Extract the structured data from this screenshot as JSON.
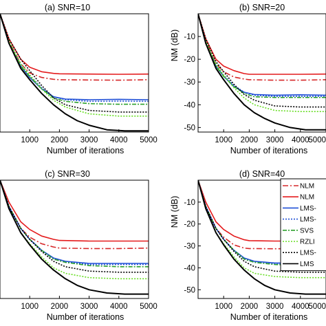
{
  "chart_data": [
    {
      "type": "line",
      "title": "(a) SNR=10",
      "xlabel": "Number of iterations",
      "ylabel": "",
      "xlim": [
        0,
        5000
      ],
      "ylim": [
        -52,
        0
      ],
      "xticks": [
        1000,
        2000,
        3000,
        4000,
        5000
      ],
      "yticks": [],
      "grid": false,
      "series": [
        {
          "name": "",
          "color": "#d62728",
          "dash": "8,3,2,3",
          "x": [
            0,
            300,
            700,
            1000,
            1400,
            1800,
            2000,
            3000,
            4000,
            5000
          ],
          "y": [
            0,
            -12,
            -22,
            -26,
            -28,
            -28.8,
            -29,
            -29.1,
            -29.2,
            -29
          ]
        },
        {
          "name": "",
          "color": "#e41a1c",
          "dash": "",
          "x": [
            0,
            300,
            700,
            1000,
            1400,
            1800,
            2000,
            3000,
            4000,
            5000
          ],
          "y": [
            0,
            -11,
            -20,
            -23.5,
            -25.5,
            -26.2,
            -26.4,
            -26.5,
            -26.6,
            -26.5
          ]
        },
        {
          "name": "",
          "color": "#1f4fd6",
          "dash": "",
          "x": [
            0,
            300,
            700,
            1000,
            1400,
            1800,
            2200,
            3000,
            4000,
            5000
          ],
          "y": [
            0,
            -13,
            -23,
            -28,
            -33,
            -36.5,
            -37.5,
            -37.8,
            -37.6,
            -37.8
          ]
        },
        {
          "name": "",
          "color": "#1f4fd6",
          "dash": "2,2",
          "x": [
            0,
            300,
            700,
            1000,
            1400,
            1800,
            2200,
            3000,
            4000,
            5000
          ],
          "y": [
            0,
            -12,
            -22,
            -27,
            -32.5,
            -36.5,
            -37.8,
            -38.5,
            -38.4,
            -38.5
          ]
        },
        {
          "name": "",
          "color": "#2ca02c",
          "dash": "6,2,2,2",
          "x": [
            0,
            300,
            700,
            1000,
            1400,
            1800,
            2200,
            3000,
            4000,
            5000
          ],
          "y": [
            0,
            -13,
            -23,
            -27.5,
            -33,
            -37,
            -38.5,
            -39.5,
            -39.8,
            -39.8
          ]
        },
        {
          "name": "",
          "color": "#66dd22",
          "dash": "2,2",
          "x": [
            0,
            300,
            700,
            1000,
            1400,
            1800,
            2200,
            3000,
            4000,
            5000
          ],
          "y": [
            0,
            -12,
            -22,
            -27,
            -33,
            -38,
            -41,
            -44,
            -45,
            -45
          ]
        },
        {
          "name": "",
          "color": "#000000",
          "dash": "2,2",
          "x": [
            0,
            300,
            700,
            1000,
            1400,
            1800,
            2200,
            3000,
            4000,
            5000
          ],
          "y": [
            0,
            -11,
            -20,
            -25,
            -31.5,
            -37,
            -40,
            -42.5,
            -43.2,
            -43.2
          ]
        },
        {
          "name": "",
          "color": "#000000",
          "dash": "",
          "x": [
            0,
            300,
            700,
            1000,
            1400,
            1800,
            2200,
            2600,
            3000,
            3600,
            4200,
            5000
          ],
          "y": [
            0,
            -13,
            -24,
            -29,
            -35,
            -40,
            -44,
            -47,
            -49,
            -51,
            -51.5,
            -51.5
          ]
        }
      ]
    },
    {
      "type": "line",
      "title": "(b) SNR=20",
      "xlabel": "Number of iterations",
      "ylabel": "NM (dB)",
      "xlim": [
        0,
        5000
      ],
      "ylim": [
        -52,
        0
      ],
      "xticks": [
        1000,
        2000,
        3000,
        4000,
        5000
      ],
      "yticks": [
        -10,
        -20,
        -30,
        -40,
        -50
      ],
      "grid": false,
      "series": [
        {
          "name": "",
          "color": "#d62728",
          "dash": "8,3,2,3",
          "x": [
            0,
            300,
            700,
            1000,
            1400,
            1800,
            2000,
            3000,
            4000,
            5000
          ],
          "y": [
            0,
            -12,
            -22,
            -25.5,
            -27.8,
            -28.7,
            -29,
            -29.2,
            -29.2,
            -29
          ]
        },
        {
          "name": "",
          "color": "#e41a1c",
          "dash": "",
          "x": [
            0,
            300,
            700,
            1000,
            1400,
            1800,
            2000,
            3000,
            4000,
            5000
          ],
          "y": [
            0,
            -11,
            -20,
            -23,
            -25,
            -26.3,
            -26.6,
            -26.6,
            -26.6,
            -26.5
          ]
        },
        {
          "name": "",
          "color": "#1f4fd6",
          "dash": "",
          "x": [
            0,
            300,
            700,
            1000,
            1400,
            1800,
            2200,
            3000,
            4000,
            5000
          ],
          "y": [
            0,
            -13,
            -23,
            -27.5,
            -32,
            -34.5,
            -35.5,
            -35.8,
            -35.6,
            -35.8
          ]
        },
        {
          "name": "",
          "color": "#1f4fd6",
          "dash": "2,2",
          "x": [
            0,
            300,
            700,
            1000,
            1400,
            1800,
            2200,
            3000,
            4000,
            5000
          ],
          "y": [
            0,
            -12,
            -22,
            -27,
            -31.5,
            -34.5,
            -35.8,
            -36.3,
            -36.3,
            -36.3
          ]
        },
        {
          "name": "",
          "color": "#2ca02c",
          "dash": "6,2,2,2",
          "x": [
            0,
            300,
            700,
            1000,
            1400,
            1800,
            2200,
            3000,
            4000,
            5000
          ],
          "y": [
            0,
            -13,
            -23,
            -27.5,
            -32,
            -35,
            -36.5,
            -36.8,
            -36.8,
            -36.8
          ]
        },
        {
          "name": "",
          "color": "#66dd22",
          "dash": "2,2",
          "x": [
            0,
            300,
            700,
            1000,
            1400,
            1800,
            2200,
            3000,
            4000,
            5000
          ],
          "y": [
            0,
            -12,
            -22,
            -27,
            -32.5,
            -37,
            -40,
            -42.5,
            -43,
            -43
          ]
        },
        {
          "name": "",
          "color": "#000000",
          "dash": "2,2",
          "x": [
            0,
            300,
            700,
            1000,
            1400,
            1800,
            2200,
            3000,
            4000,
            5000
          ],
          "y": [
            0,
            -11,
            -21,
            -25.5,
            -31,
            -35.5,
            -38,
            -40.5,
            -41,
            -41
          ]
        },
        {
          "name": "",
          "color": "#000000",
          "dash": "",
          "x": [
            0,
            300,
            700,
            1000,
            1400,
            1800,
            2200,
            2600,
            3000,
            3600,
            4200,
            5000
          ],
          "y": [
            0,
            -13,
            -24,
            -29,
            -35,
            -40,
            -43.5,
            -46,
            -48,
            -50,
            -51,
            -51
          ]
        }
      ]
    },
    {
      "type": "line",
      "title": "(c) SNR=30",
      "xlabel": "Number of iterations",
      "ylabel": "",
      "xlim": [
        0,
        5000
      ],
      "ylim": [
        -54,
        0
      ],
      "xticks": [
        1000,
        2000,
        3000,
        4000,
        5000
      ],
      "yticks": [],
      "grid": false,
      "series": [
        {
          "name": "",
          "color": "#d62728",
          "dash": "8,3,2,3",
          "x": [
            0,
            300,
            700,
            1000,
            1400,
            1800,
            2000,
            3000,
            4000,
            5000
          ],
          "y": [
            0,
            -12,
            -22,
            -26,
            -29,
            -30.5,
            -31,
            -31.2,
            -31.2,
            -31
          ]
        },
        {
          "name": "",
          "color": "#e41a1c",
          "dash": "",
          "x": [
            0,
            300,
            700,
            1000,
            1400,
            1800,
            2000,
            3000,
            4000,
            5000
          ],
          "y": [
            0,
            -10,
            -19,
            -22.5,
            -25.5,
            -27,
            -27.5,
            -27.8,
            -27.8,
            -27.8
          ]
        },
        {
          "name": "",
          "color": "#1f4fd6",
          "dash": "",
          "x": [
            0,
            300,
            700,
            1000,
            1400,
            1800,
            2200,
            3000,
            4000,
            5000
          ],
          "y": [
            0,
            -12,
            -22,
            -27,
            -32,
            -35.5,
            -37,
            -38,
            -38,
            -38
          ]
        },
        {
          "name": "",
          "color": "#1f4fd6",
          "dash": "2,2",
          "x": [
            0,
            300,
            700,
            1000,
            1400,
            1800,
            2200,
            3000,
            4000,
            5000
          ],
          "y": [
            0,
            -12,
            -22,
            -27,
            -32,
            -36,
            -37.5,
            -38.5,
            -38.5,
            -38.5
          ]
        },
        {
          "name": "",
          "color": "#2ca02c",
          "dash": "6,2,2,2",
          "x": [
            0,
            300,
            700,
            1000,
            1400,
            1800,
            2200,
            3000,
            4000,
            5000
          ],
          "y": [
            0,
            -12,
            -22,
            -27,
            -32,
            -36,
            -37.5,
            -39,
            -39.5,
            -39.5
          ]
        },
        {
          "name": "",
          "color": "#66dd22",
          "dash": "2,2",
          "x": [
            0,
            300,
            700,
            1000,
            1400,
            1800,
            2200,
            3000,
            4000,
            5000
          ],
          "y": [
            0,
            -13,
            -24,
            -29,
            -35,
            -40,
            -42.5,
            -44.5,
            -45,
            -45
          ]
        },
        {
          "name": "",
          "color": "#000000",
          "dash": "2,2",
          "x": [
            0,
            300,
            700,
            1000,
            1400,
            1800,
            2200,
            3000,
            4000,
            5000
          ],
          "y": [
            0,
            -12,
            -22,
            -27,
            -32.5,
            -37,
            -39.5,
            -41.5,
            -42,
            -42
          ]
        },
        {
          "name": "",
          "color": "#000000",
          "dash": "",
          "x": [
            0,
            300,
            700,
            1000,
            1400,
            1800,
            2200,
            2600,
            3000,
            3600,
            4200,
            5000
          ],
          "y": [
            0,
            -13,
            -24,
            -29.5,
            -36,
            -41,
            -45,
            -48,
            -50,
            -51.5,
            -52,
            -52
          ]
        }
      ]
    },
    {
      "type": "line",
      "title": "(d) SNR=40",
      "xlabel": "Number of iterations",
      "ylabel": "NM (dB)",
      "xlim": [
        0,
        5000
      ],
      "ylim": [
        -54,
        0
      ],
      "xticks": [
        1000,
        2000,
        3000,
        4000,
        5000
      ],
      "yticks": [
        -10,
        -20,
        -30,
        -40,
        -50
      ],
      "grid": false,
      "legend": [
        "NLM",
        "NLM",
        "LMS-",
        "LMS-",
        "SVS",
        "RZLI",
        "LMS-",
        "LMS"
      ],
      "series": [
        {
          "name": "NLM",
          "color": "#d62728",
          "dash": "8,3,2,3",
          "x": [
            0,
            300,
            700,
            1000,
            1400,
            1800,
            2000,
            3000,
            4000,
            5000
          ],
          "y": [
            0,
            -12,
            -22,
            -26,
            -29.5,
            -31,
            -31.2,
            -31.3,
            -31.2,
            -31
          ]
        },
        {
          "name": "NLM",
          "color": "#e41a1c",
          "dash": "",
          "x": [
            0,
            300,
            700,
            1000,
            1400,
            1800,
            2000,
            3000,
            4000,
            5000
          ],
          "y": [
            0,
            -10,
            -19,
            -22.5,
            -25.5,
            -27.2,
            -27.6,
            -27.8,
            -27.8,
            -27.8
          ]
        },
        {
          "name": "LMS-",
          "color": "#1f4fd6",
          "dash": "",
          "x": [
            0,
            300,
            700,
            1000,
            1400,
            1800,
            2200,
            3000,
            4000,
            5000
          ],
          "y": [
            0,
            -12,
            -22,
            -27,
            -32,
            -35.5,
            -37,
            -37.8,
            -37.8,
            -37.8
          ]
        },
        {
          "name": "LMS-",
          "color": "#1f4fd6",
          "dash": "2,2",
          "x": [
            0,
            300,
            700,
            1000,
            1400,
            1800,
            2200,
            3000,
            4000,
            5000
          ],
          "y": [
            0,
            -12,
            -22,
            -27,
            -32,
            -36,
            -37.5,
            -38.3,
            -38.3,
            -38.3
          ]
        },
        {
          "name": "SVS",
          "color": "#2ca02c",
          "dash": "6,2,2,2",
          "x": [
            0,
            300,
            700,
            1000,
            1400,
            1800,
            2200,
            3000,
            4000,
            5000
          ],
          "y": [
            0,
            -12,
            -22,
            -27,
            -32,
            -36,
            -37.5,
            -38.5,
            -39,
            -39
          ]
        },
        {
          "name": "RZLI",
          "color": "#66dd22",
          "dash": "2,2",
          "x": [
            0,
            300,
            700,
            1000,
            1400,
            1800,
            2200,
            3000,
            4000,
            5000
          ],
          "y": [
            0,
            -13,
            -24,
            -29,
            -35,
            -40,
            -42.5,
            -44,
            -44.5,
            -44.5
          ]
        },
        {
          "name": "LMS-",
          "color": "#000000",
          "dash": "2,2",
          "x": [
            0,
            300,
            700,
            1000,
            1400,
            1800,
            2200,
            3000,
            4000,
            5000
          ],
          "y": [
            0,
            -12,
            -22,
            -27,
            -32.5,
            -37,
            -39.5,
            -41.5,
            -42,
            -42
          ]
        },
        {
          "name": "LMS",
          "color": "#000000",
          "dash": "",
          "x": [
            0,
            300,
            700,
            1000,
            1400,
            1800,
            2200,
            2600,
            3000,
            3600,
            4200,
            5000
          ],
          "y": [
            0,
            -13,
            -24,
            -29.5,
            -36,
            -41,
            -45,
            -48,
            -50,
            -51.5,
            -52,
            -52
          ]
        }
      ]
    }
  ]
}
